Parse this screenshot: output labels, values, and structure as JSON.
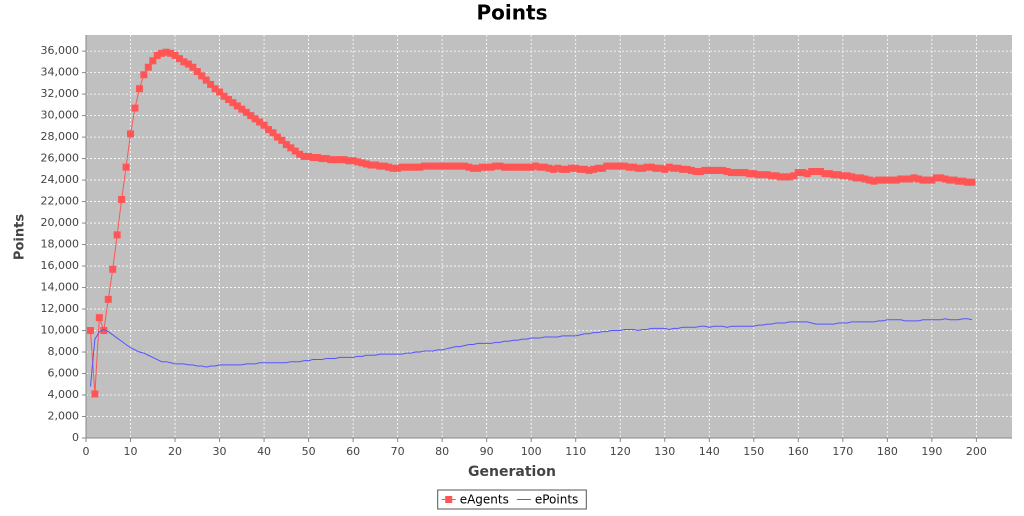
{
  "chart_data": {
    "type": "line",
    "title": "Points",
    "x_label": "Generation",
    "y_label": "Points",
    "x": [
      1,
      2,
      3,
      4,
      5,
      6,
      7,
      8,
      9,
      10,
      11,
      12,
      13,
      14,
      15,
      16,
      17,
      18,
      19,
      20,
      21,
      22,
      23,
      24,
      25,
      26,
      27,
      28,
      29,
      30,
      31,
      32,
      33,
      34,
      35,
      36,
      37,
      38,
      39,
      40,
      41,
      42,
      43,
      44,
      45,
      46,
      47,
      48,
      49,
      50,
      51,
      52,
      53,
      54,
      55,
      56,
      57,
      58,
      59,
      60,
      61,
      62,
      63,
      64,
      65,
      66,
      67,
      68,
      69,
      70,
      71,
      72,
      73,
      74,
      75,
      76,
      77,
      78,
      79,
      80,
      81,
      82,
      83,
      84,
      85,
      86,
      87,
      88,
      89,
      90,
      91,
      92,
      93,
      94,
      95,
      96,
      97,
      98,
      99,
      100,
      101,
      102,
      103,
      104,
      105,
      106,
      107,
      108,
      109,
      110,
      111,
      112,
      113,
      114,
      115,
      116,
      117,
      118,
      119,
      120,
      121,
      122,
      123,
      124,
      125,
      126,
      127,
      128,
      129,
      130,
      131,
      132,
      133,
      134,
      135,
      136,
      137,
      138,
      139,
      140,
      141,
      142,
      143,
      144,
      145,
      146,
      147,
      148,
      149,
      150,
      151,
      152,
      153,
      154,
      155,
      156,
      157,
      158,
      159,
      160,
      161,
      162,
      163,
      164,
      165,
      166,
      167,
      168,
      169,
      170,
      171,
      172,
      173,
      174,
      175,
      176,
      177,
      178,
      179,
      180,
      181,
      182,
      183,
      184,
      185,
      186,
      187,
      188,
      189,
      190,
      191,
      192,
      193,
      194,
      195,
      196,
      197,
      198,
      199
    ],
    "series": [
      {
        "name": "eAgents",
        "color": "#ff5555",
        "marker": "square",
        "values": [
          10000,
          4100,
          11200,
          10000,
          12900,
          15700,
          18900,
          22200,
          25200,
          28300,
          30700,
          32500,
          33800,
          34500,
          35100,
          35600,
          35800,
          35900,
          35800,
          35600,
          35300,
          35000,
          34800,
          34500,
          34100,
          33700,
          33300,
          32900,
          32500,
          32200,
          31800,
          31500,
          31200,
          30900,
          30600,
          30300,
          30000,
          29700,
          29400,
          29100,
          28700,
          28400,
          28000,
          27700,
          27300,
          27000,
          26700,
          26400,
          26200,
          26200,
          26100,
          26100,
          26000,
          26000,
          25900,
          25900,
          25900,
          25900,
          25800,
          25800,
          25700,
          25600,
          25500,
          25400,
          25400,
          25300,
          25300,
          25200,
          25100,
          25100,
          25200,
          25200,
          25200,
          25200,
          25200,
          25300,
          25300,
          25300,
          25300,
          25300,
          25300,
          25300,
          25300,
          25300,
          25300,
          25200,
          25100,
          25100,
          25200,
          25200,
          25200,
          25300,
          25300,
          25200,
          25200,
          25200,
          25200,
          25200,
          25200,
          25200,
          25300,
          25200,
          25200,
          25100,
          25000,
          25100,
          25000,
          25000,
          25100,
          25100,
          25000,
          25000,
          24900,
          25000,
          25100,
          25100,
          25300,
          25300,
          25300,
          25300,
          25300,
          25200,
          25200,
          25100,
          25100,
          25200,
          25200,
          25100,
          25100,
          25000,
          25200,
          25100,
          25100,
          25000,
          25000,
          24900,
          24800,
          24800,
          24900,
          24900,
          24900,
          24900,
          24900,
          24800,
          24700,
          24700,
          24700,
          24700,
          24600,
          24600,
          24500,
          24500,
          24500,
          24400,
          24400,
          24300,
          24300,
          24300,
          24400,
          24700,
          24700,
          24600,
          24800,
          24800,
          24800,
          24600,
          24600,
          24500,
          24500,
          24400,
          24400,
          24300,
          24200,
          24200,
          24100,
          24000,
          23900,
          24000,
          24000,
          24000,
          24000,
          24000,
          24100,
          24100,
          24100,
          24200,
          24100,
          24000,
          24000,
          24000,
          24200,
          24200,
          24100,
          24000,
          24000,
          23900,
          23900,
          23800,
          23800
        ]
      },
      {
        "name": "ePoints",
        "color": "#5555ff",
        "marker": "none",
        "values": [
          4800,
          9200,
          9900,
          10100,
          9900,
          9600,
          9300,
          9000,
          8700,
          8400,
          8200,
          8000,
          7900,
          7700,
          7500,
          7300,
          7100,
          7100,
          7000,
          6900,
          6900,
          6900,
          6800,
          6800,
          6700,
          6700,
          6600,
          6700,
          6700,
          6800,
          6800,
          6800,
          6800,
          6800,
          6800,
          6900,
          6900,
          6900,
          7000,
          7000,
          7000,
          7000,
          7000,
          7000,
          7000,
          7100,
          7100,
          7100,
          7200,
          7200,
          7300,
          7300,
          7300,
          7400,
          7400,
          7400,
          7500,
          7500,
          7500,
          7500,
          7600,
          7600,
          7700,
          7700,
          7700,
          7800,
          7800,
          7800,
          7800,
          7800,
          7800,
          7900,
          7900,
          8000,
          8000,
          8100,
          8100,
          8100,
          8200,
          8200,
          8300,
          8400,
          8500,
          8500,
          8600,
          8700,
          8700,
          8800,
          8800,
          8800,
          8800,
          8900,
          8900,
          9000,
          9000,
          9100,
          9100,
          9200,
          9200,
          9300,
          9300,
          9300,
          9400,
          9400,
          9400,
          9400,
          9500,
          9500,
          9500,
          9500,
          9600,
          9700,
          9700,
          9800,
          9800,
          9900,
          9900,
          10000,
          10000,
          10000,
          10100,
          10100,
          10100,
          10000,
          10100,
          10100,
          10200,
          10200,
          10200,
          10200,
          10100,
          10200,
          10200,
          10300,
          10300,
          10300,
          10300,
          10400,
          10400,
          10300,
          10400,
          10400,
          10400,
          10300,
          10400,
          10400,
          10400,
          10400,
          10400,
          10400,
          10500,
          10500,
          10600,
          10600,
          10700,
          10700,
          10700,
          10800,
          10800,
          10800,
          10800,
          10800,
          10700,
          10600,
          10600,
          10600,
          10600,
          10600,
          10700,
          10700,
          10700,
          10800,
          10800,
          10800,
          10800,
          10800,
          10800,
          10900,
          10900,
          11000,
          11000,
          11000,
          11000,
          10900,
          10900,
          10900,
          10900,
          11000,
          11000,
          11000,
          11000,
          11000,
          11100,
          11000,
          11000,
          11000,
          11100,
          11100,
          11000
        ]
      }
    ],
    "xlim": [
      0,
      208
    ],
    "xticks": [
      0,
      10,
      20,
      30,
      40,
      50,
      60,
      70,
      80,
      90,
      100,
      110,
      120,
      130,
      140,
      150,
      160,
      170,
      180,
      190,
      200
    ],
    "ylim": [
      0,
      37500
    ],
    "yticks": [
      0,
      {
        "value": 2000,
        "label": "2,000"
      },
      {
        "value": 4000,
        "label": "4,000"
      },
      {
        "value": 6000,
        "label": "6,000"
      },
      {
        "value": 8000,
        "label": "8,000"
      },
      {
        "value": 10000,
        "label": "10,000"
      },
      {
        "value": 12000,
        "label": "12,000"
      },
      {
        "value": 14000,
        "label": "14,000"
      },
      {
        "value": 16000,
        "label": "16,000"
      },
      {
        "value": 18000,
        "label": "18,000"
      },
      {
        "value": 20000,
        "label": "20,000"
      },
      {
        "value": 22000,
        "label": "22,000"
      },
      {
        "value": 24000,
        "label": "24,000"
      },
      {
        "value": 26000,
        "label": "26,000"
      },
      {
        "value": 28000,
        "label": "28,000"
      },
      {
        "value": 30000,
        "label": "30,000"
      },
      {
        "value": 32000,
        "label": "32,000"
      },
      {
        "value": 34000,
        "label": "34,000"
      },
      {
        "value": 36000,
        "label": "36,000"
      }
    ],
    "grid": true,
    "legend": "bottom"
  }
}
